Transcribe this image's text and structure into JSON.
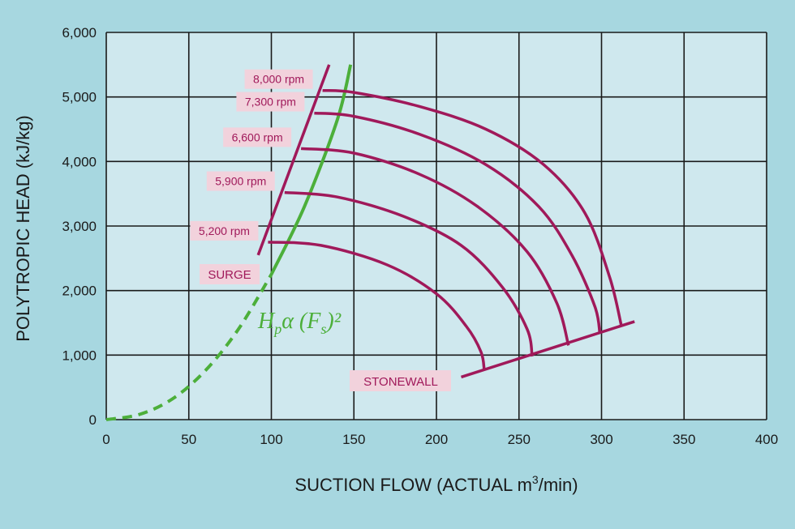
{
  "chart_data": {
    "type": "line",
    "xlabel_main": "SUCTION FLOW (ACTUAL m",
    "xlabel_sup": "3",
    "xlabel_tail": "/min)",
    "ylabel": "POLYTROPIC HEAD (kJ/kg)",
    "xlim": [
      0,
      400
    ],
    "ylim": [
      0,
      6000
    ],
    "x_ticks": [
      0,
      50,
      100,
      150,
      200,
      250,
      300,
      350,
      400
    ],
    "y_ticks": [
      0,
      1000,
      2000,
      3000,
      4000,
      5000,
      6000
    ],
    "x_tick_labels": [
      "0",
      "50",
      "100",
      "150",
      "200",
      "250",
      "300",
      "350",
      "400"
    ],
    "y_tick_labels": [
      "0",
      "1,000",
      "2,000",
      "3,000",
      "4,000",
      "5,000",
      "6,000"
    ],
    "grid": true,
    "colors": {
      "background": "#a7d7e0",
      "plot_bg": "#cfe8ee",
      "rpm": "#a0195a",
      "law": "#4caf3a",
      "label_bg": "#f2d2dc"
    },
    "series": [
      {
        "name": "8,000 rpm",
        "x": [
          131,
          150,
          190,
          230,
          265,
          290,
          305,
          312
        ],
        "y": [
          5100,
          5070,
          4850,
          4500,
          3950,
          3200,
          2200,
          1460
        ]
      },
      {
        "name": "7,300 rpm",
        "x": [
          126,
          150,
          190,
          230,
          262,
          282,
          296,
          299
        ],
        "y": [
          4750,
          4700,
          4420,
          3950,
          3300,
          2550,
          1750,
          1330
        ]
      },
      {
        "name": "6,600 rpm",
        "x": [
          118,
          150,
          190,
          225,
          255,
          273,
          280
        ],
        "y": [
          4200,
          4130,
          3800,
          3300,
          2600,
          1800,
          1150
        ]
      },
      {
        "name": "5,900 rpm",
        "x": [
          108,
          140,
          180,
          215,
          240,
          255,
          258
        ],
        "y": [
          3520,
          3450,
          3150,
          2700,
          2050,
          1400,
          980
        ]
      },
      {
        "name": "5,200 rpm",
        "x": [
          98,
          130,
          170,
          200,
          218,
          227,
          229
        ],
        "y": [
          2750,
          2700,
          2400,
          1950,
          1450,
          1050,
          760
        ]
      }
    ],
    "surge_line": {
      "x": [
        92,
        135
      ],
      "y": [
        2550,
        5500
      ]
    },
    "stonewall_line": {
      "x": [
        215,
        320
      ],
      "y": [
        660,
        1520
      ]
    },
    "law_curve": {
      "x": [
        0,
        20,
        40,
        60,
        80,
        100,
        120,
        140,
        148
      ],
      "y": [
        0,
        80,
        320,
        760,
        1400,
        2250,
        3300,
        4650,
        5500
      ],
      "dashed_below_x": 97
    },
    "annotations": {
      "surge": "SURGE",
      "stonewall": "STONEWALL",
      "law_H": "H",
      "law_p": "p",
      "law_alpha": "α (F",
      "law_s": "s",
      "law_close": ")²"
    }
  }
}
